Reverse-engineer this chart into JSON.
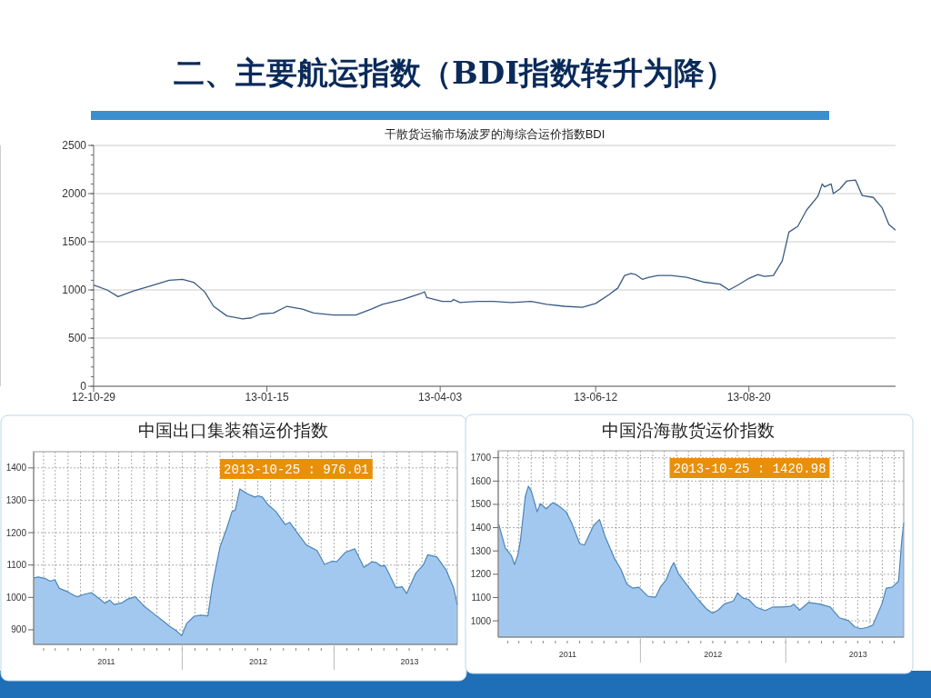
{
  "chart_data": [
    {
      "type": "line",
      "title": "二、主要航运指数（BDI指数转升为降）",
      "subtitle": "干散货运输市场波罗的海综合运价指数BDI",
      "x": [
        "2012-10-29",
        "2012-11-04",
        "2012-11-09",
        "2012-11-16",
        "2012-11-25",
        "2012-12-02",
        "2012-12-08",
        "2012-12-13",
        "2012-12-18",
        "2012-12-22",
        "2012-12-28",
        "2013-01-04",
        "2013-01-08",
        "2013-01-12",
        "2013-01-18",
        "2013-01-24",
        "2013-01-31",
        "2013-02-05",
        "2013-02-14",
        "2013-02-24",
        "2013-03-03",
        "2013-03-08",
        "2013-03-17",
        "2013-03-25",
        "2013-03-27",
        "2013-03-28",
        "2013-04-04",
        "2013-04-08",
        "2013-04-09",
        "2013-04-12",
        "2013-04-20",
        "2013-04-27",
        "2013-05-05",
        "2013-05-14",
        "2013-05-21",
        "2013-05-29",
        "2013-06-06",
        "2013-06-12",
        "2013-06-18",
        "2013-06-22",
        "2013-06-25",
        "2013-06-28",
        "2013-06-30",
        "2013-07-03",
        "2013-07-06",
        "2013-07-10",
        "2013-07-16",
        "2013-07-23",
        "2013-07-31",
        "2013-08-07",
        "2013-08-11",
        "2013-08-15",
        "2013-08-20",
        "2013-08-24",
        "2013-08-27",
        "2013-08-31",
        "2013-09-04",
        "2013-09-07",
        "2013-09-11",
        "2013-09-15",
        "2013-09-20",
        "2013-09-22",
        "2013-09-23",
        "2013-09-26",
        "2013-09-27",
        "2013-09-30",
        "2013-10-03",
        "2013-10-07",
        "2013-10-10",
        "2013-10-15",
        "2013-10-19",
        "2013-10-22",
        "2013-10-25"
      ],
      "series": [
        {
          "color": "#3a5a85",
          "values": [
            1050,
            1000,
            930,
            990,
            1050,
            1100,
            1110,
            1080,
            980,
            830,
            730,
            700,
            710,
            750,
            760,
            830,
            800,
            760,
            740,
            740,
            800,
            850,
            900,
            960,
            980,
            920,
            880,
            880,
            900,
            870,
            880,
            880,
            870,
            880,
            850,
            830,
            820,
            860,
            950,
            1020,
            1150,
            1170,
            1160,
            1110,
            1130,
            1150,
            1150,
            1130,
            1080,
            1060,
            1000,
            1050,
            1120,
            1160,
            1140,
            1150,
            1300,
            1600,
            1660,
            1830,
            1970,
            2100,
            2070,
            2100,
            2000,
            2050,
            2130,
            2140,
            1980,
            1960,
            1850,
            1680,
            1620
          ]
        }
      ],
      "xlim": [
        "2012-10-29",
        "2013-10-25"
      ],
      "xticks": [
        {
          "value": "2012-10-29",
          "label": "12-10-29"
        },
        {
          "value": "2013-01-15",
          "label": "13-01-15"
        },
        {
          "value": "2013-04-03",
          "label": "13-04-03"
        },
        {
          "value": "2013-06-12",
          "label": "13-06-12"
        },
        {
          "value": "2013-08-20",
          "label": "13-08-20"
        }
      ],
      "ylim": [
        0,
        2500
      ],
      "yticks": [
        0,
        500,
        1000,
        1500,
        2000,
        2500
      ],
      "grid": true
    },
    {
      "type": "area",
      "title": "中国出口集装箱运价指数",
      "x": [
        "2011-01-08",
        "2011-01-19",
        "2011-02-06",
        "2011-02-17",
        "2011-02-28",
        "2011-03-11",
        "2011-03-30",
        "2011-04-17",
        "2011-04-24",
        "2011-05-05",
        "2011-05-27",
        "2011-06-11",
        "2011-06-29",
        "2011-07-10",
        "2011-07-21",
        "2011-08-08",
        "2011-08-23",
        "2011-09-10",
        "2011-10-02",
        "2011-10-24",
        "2011-11-18",
        "2011-12-03",
        "2011-12-17",
        "2011-12-31",
        "2012-01-12",
        "2012-01-30",
        "2012-02-14",
        "2012-03-03",
        "2012-03-14",
        "2012-04-01",
        "2012-04-19",
        "2012-04-30",
        "2012-05-08",
        "2012-05-19",
        "2012-06-06",
        "2012-06-24",
        "2012-07-02",
        "2012-07-12",
        "2012-07-27",
        "2012-08-14",
        "2012-09-05",
        "2012-09-16",
        "2012-10-26",
        "2012-11-21",
        "2012-12-09",
        "2012-12-27",
        "2013-01-07",
        "2013-01-29",
        "2013-02-20",
        "2013-03-14",
        "2013-04-02",
        "2013-04-13",
        "2013-04-23",
        "2013-05-04",
        "2013-05-30",
        "2013-06-14",
        "2013-06-25",
        "2013-07-17",
        "2013-08-04",
        "2013-08-15",
        "2013-09-06",
        "2013-09-28",
        "2013-10-16",
        "2013-10-25"
      ],
      "series": [
        {
          "color": "#a3c8f0",
          "values": [
            1060,
            1063,
            1058,
            1050,
            1055,
            1028,
            1018,
            1005,
            1002,
            1008,
            1015,
            1000,
            982,
            992,
            978,
            983,
            995,
            1002,
            972,
            950,
            925,
            910,
            898,
            882,
            920,
            942,
            945,
            943,
            1040,
            1155,
            1220,
            1265,
            1270,
            1335,
            1320,
            1310,
            1314,
            1310,
            1285,
            1265,
            1225,
            1232,
            1162,
            1145,
            1102,
            1112,
            1110,
            1140,
            1150,
            1093,
            1110,
            1108,
            1097,
            1098,
            1030,
            1033,
            1012,
            1075,
            1100,
            1132,
            1125,
            1085,
            1030,
            976.01
          ]
        }
      ],
      "xlim": [
        "2011-01-08",
        "2013-10-25"
      ],
      "xticks": [
        {
          "value": "2011-07-02",
          "label": "2011"
        },
        {
          "value": "2012-01-01",
          "label": null
        },
        {
          "value": "2012-07-02",
          "label": "2012"
        },
        {
          "value": "2013-01-01",
          "label": null
        },
        {
          "value": "2013-07-02",
          "label": "2013"
        }
      ],
      "ylim": [
        855,
        1450
      ],
      "yticks": [
        900,
        1000,
        1100,
        1200,
        1300,
        1400
      ],
      "grid": true,
      "annotations": [
        "2013-10-25 : 976.01"
      ]
    },
    {
      "type": "area",
      "title": "中国沿海散货运价指数",
      "x": [
        "2011-01-09",
        "2011-01-26",
        "2011-02-10",
        "2011-02-18",
        "2011-02-26",
        "2011-03-05",
        "2011-03-17",
        "2011-03-25",
        "2011-04-01",
        "2011-04-16",
        "2011-04-24",
        "2011-05-09",
        "2011-05-25",
        "2011-06-09",
        "2011-06-28",
        "2011-07-13",
        "2011-08-01",
        "2011-08-13",
        "2011-09-05",
        "2011-09-20",
        "2011-10-05",
        "2011-10-28",
        "2011-11-13",
        "2011-11-28",
        "2011-12-13",
        "2011-12-28",
        "2012-01-20",
        "2012-02-08",
        "2012-02-20",
        "2012-03-06",
        "2012-03-18",
        "2012-03-25",
        "2012-04-06",
        "2012-04-29",
        "2012-05-22",
        "2012-06-14",
        "2012-06-30",
        "2012-07-15",
        "2012-07-30",
        "2012-08-22",
        "2012-09-02",
        "2012-09-14",
        "2012-09-29",
        "2012-10-18",
        "2012-11-10",
        "2012-11-29",
        "2012-12-21",
        "2013-01-13",
        "2013-01-21",
        "2013-02-05",
        "2013-02-28",
        "2013-03-27",
        "2013-04-23",
        "2013-05-16",
        "2013-06-08",
        "2013-06-23",
        "2013-07-08",
        "2013-07-24",
        "2013-08-08",
        "2013-08-31",
        "2013-09-11",
        "2013-09-26",
        "2013-10-12",
        "2013-10-20",
        "2013-10-25"
      ],
      "series": [
        {
          "color": "#a3c8f0",
          "values": [
            1416,
            1312,
            1280,
            1241,
            1280,
            1345,
            1533,
            1578,
            1559,
            1468,
            1503,
            1481,
            1507,
            1494,
            1468,
            1416,
            1332,
            1325,
            1409,
            1435,
            1358,
            1267,
            1221,
            1157,
            1140,
            1144,
            1105,
            1101,
            1144,
            1176,
            1228,
            1250,
            1202,
            1150,
            1098,
            1053,
            1033,
            1046,
            1072,
            1085,
            1120,
            1098,
            1092,
            1059,
            1044,
            1059,
            1059,
            1062,
            1072,
            1046,
            1079,
            1072,
            1059,
            1013,
            1001,
            975,
            966,
            971,
            981,
            1072,
            1140,
            1144,
            1170,
            1345,
            1420.98
          ]
        }
      ],
      "xlim": [
        "2011-01-08",
        "2013-10-25"
      ],
      "xticks": [
        {
          "value": "2011-07-02",
          "label": "2011"
        },
        {
          "value": "2012-01-01",
          "label": null
        },
        {
          "value": "2012-07-02",
          "label": "2012"
        },
        {
          "value": "2013-01-01",
          "label": null
        },
        {
          "value": "2013-07-02",
          "label": "2013"
        }
      ],
      "ylim": [
        930,
        1730
      ],
      "yticks": [
        1000,
        1100,
        1200,
        1300,
        1400,
        1500,
        1600,
        1700
      ],
      "grid": true,
      "annotations": [
        "2013-10-25 : 1420.98"
      ]
    }
  ]
}
